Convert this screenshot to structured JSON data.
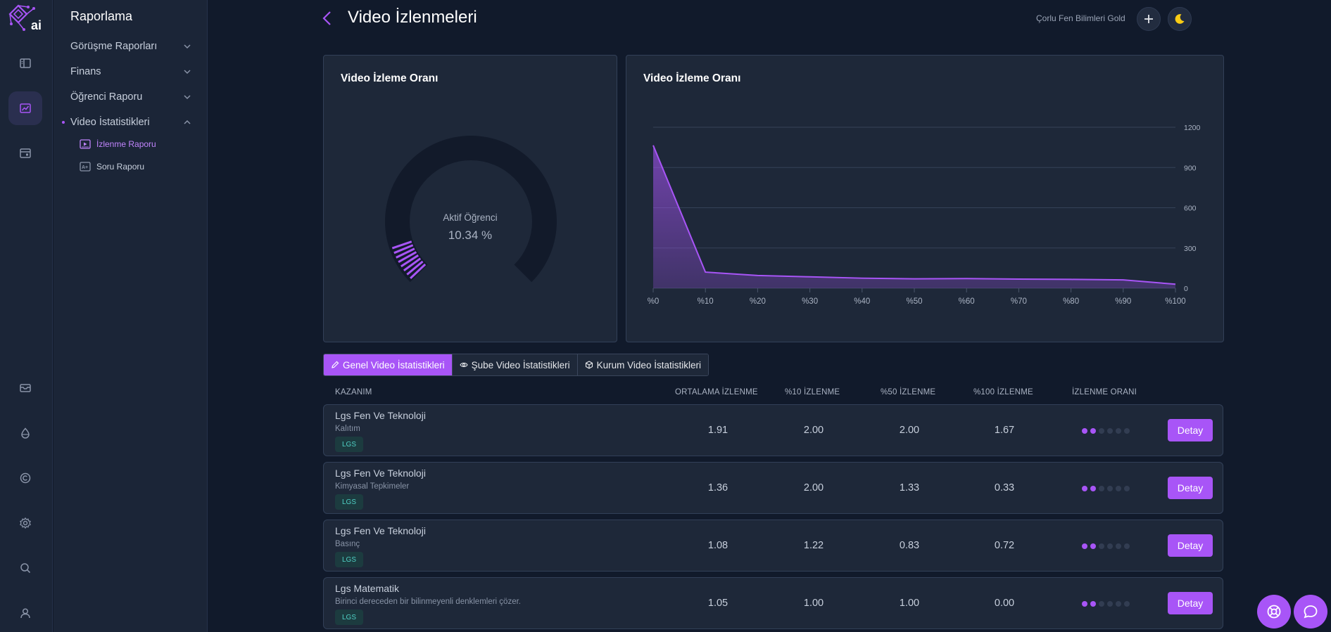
{
  "sidebar": {
    "title": "Raporlama",
    "items": [
      {
        "label": "Görüşme Raporları"
      },
      {
        "label": "Finans"
      },
      {
        "label": "Öğrenci Raporu"
      },
      {
        "label": "Video İstatistikleri"
      }
    ],
    "subitems": [
      {
        "label": "İzlenme Raporu"
      },
      {
        "label": "Soru Raporu"
      }
    ]
  },
  "header": {
    "title": "Video İzlenmeleri",
    "org": "Çorlu Fen Bilimleri Gold"
  },
  "gauge_card": {
    "title": "Video İzleme Oranı",
    "label": "Aktif Öğrenci",
    "value_text": "10.34 %",
    "percent": 10.34
  },
  "chart_card": {
    "title": "Video İzleme Oranı"
  },
  "chart_data": {
    "type": "area",
    "title": "Video İzleme Oranı",
    "categories": [
      "%0",
      "%10",
      "%20",
      "%30",
      "%40",
      "%50",
      "%60",
      "%70",
      "%80",
      "%90",
      "%100"
    ],
    "values": [
      1065,
      120,
      95,
      85,
      75,
      70,
      72,
      68,
      66,
      62,
      30
    ],
    "yticks": [
      "0",
      "300",
      "600",
      "900",
      "1200"
    ],
    "ylim": [
      0,
      1200
    ],
    "grid": true,
    "color": "#a855f7"
  },
  "tabs": [
    {
      "label": "Genel Video İstatistikleri"
    },
    {
      "label": "Şube Video İstatistikleri"
    },
    {
      "label": "Kurum Video İstatistikleri"
    }
  ],
  "table": {
    "headers": [
      "KAZANIM",
      "ORTALAMA İZLENME",
      "%10 İZLENME",
      "%50 İZLENME",
      "%100 İZLENME",
      "İZLENME ORANI"
    ],
    "detail_label": "Detay",
    "rows": [
      {
        "title": "Lgs Fen Ve Teknoloji",
        "subtitle": "Kalıtım",
        "badge": "LGS",
        "avg": "1.91",
        "p10": "2.00",
        "p50": "2.00",
        "p100": "1.67",
        "rating": 2
      },
      {
        "title": "Lgs Fen Ve Teknoloji",
        "subtitle": "Kimyasal Tepkimeler",
        "badge": "LGS",
        "avg": "1.36",
        "p10": "2.00",
        "p50": "1.33",
        "p100": "0.33",
        "rating": 2
      },
      {
        "title": "Lgs Fen Ve Teknoloji",
        "subtitle": "Basınç",
        "badge": "LGS",
        "avg": "1.08",
        "p10": "1.22",
        "p50": "0.83",
        "p100": "0.72",
        "rating": 2
      },
      {
        "title": "Lgs Matematik",
        "subtitle": "Birinci dereceden bir bilinmeyenli denklemleri çözer.",
        "badge": "LGS",
        "avg": "1.05",
        "p10": "1.00",
        "p50": "1.00",
        "p100": "0.00",
        "rating": 2
      }
    ]
  },
  "colors": {
    "accent": "#a855f7",
    "background": "#111a2b",
    "panel": "#1e2839",
    "badge_text": "#4fd1c5"
  }
}
